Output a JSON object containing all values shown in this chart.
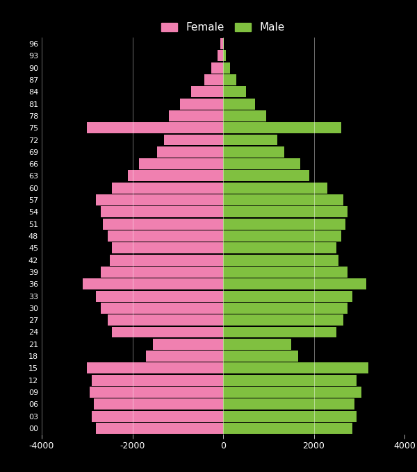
{
  "background_color": "#000000",
  "female_color": "#f080b0",
  "male_color": "#80c040",
  "grid_color": "#ffffff",
  "tick_color": "#ffffff",
  "label_color": "#ffffff",
  "xlim": [
    -4000,
    4000
  ],
  "xticks": [
    -4000,
    -2000,
    0,
    2000,
    4000
  ],
  "age_labels": [
    "00",
    "03",
    "06",
    "09",
    "12",
    "15",
    "18",
    "21",
    "24",
    "27",
    "30",
    "33",
    "36",
    "39",
    "42",
    "45",
    "48",
    "51",
    "54",
    "57",
    "60",
    "63",
    "66",
    "69",
    "72",
    "75",
    "78",
    "81",
    "84",
    "87",
    "90",
    "93",
    "96"
  ],
  "female": [
    2800,
    2900,
    2850,
    2950,
    2900,
    3000,
    1700,
    1550,
    2450,
    2550,
    2700,
    2800,
    3100,
    2700,
    2500,
    2450,
    2550,
    2650,
    2700,
    2800,
    2450,
    2100,
    1850,
    1450,
    1300,
    3000,
    1200,
    950,
    700,
    420,
    260,
    130,
    55
  ],
  "male": [
    2850,
    2950,
    2900,
    3050,
    2950,
    3200,
    1650,
    1500,
    2500,
    2650,
    2750,
    2850,
    3150,
    2750,
    2550,
    2500,
    2600,
    2700,
    2750,
    2650,
    2300,
    1900,
    1700,
    1350,
    1200,
    2600,
    950,
    700,
    500,
    290,
    155,
    65,
    20
  ]
}
